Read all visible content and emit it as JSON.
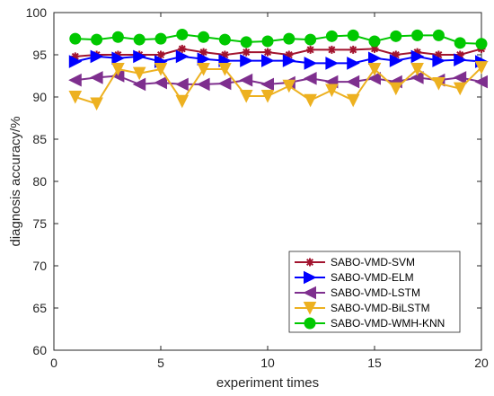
{
  "chart_data": {
    "type": "line",
    "title": "",
    "xlabel": "experiment times",
    "ylabel": "diagnosis accuracy/%",
    "xlim": [
      0,
      20
    ],
    "ylim": [
      60,
      100
    ],
    "xticks": [
      0,
      5,
      10,
      15,
      20
    ],
    "yticks": [
      60,
      65,
      70,
      75,
      80,
      85,
      90,
      95,
      100
    ],
    "grid": false,
    "legend_position": "bottom-right",
    "x": [
      1,
      2,
      3,
      4,
      5,
      6,
      7,
      8,
      9,
      10,
      11,
      12,
      13,
      14,
      15,
      16,
      17,
      18,
      19,
      20
    ],
    "series": [
      {
        "name": "SABO-VMD-SVM",
        "color": "#a2142f",
        "marker": "asterisk",
        "values": [
          94.8,
          95.0,
          95.0,
          95.0,
          95.0,
          95.7,
          95.3,
          95.0,
          95.3,
          95.3,
          95.0,
          95.6,
          95.6,
          95.6,
          95.7,
          95.0,
          95.3,
          95.0,
          95.0,
          95.7
        ]
      },
      {
        "name": "SABO-VMD-ELM",
        "color": "#0000ff",
        "marker": "triangle-right",
        "values": [
          94.2,
          94.8,
          94.6,
          94.8,
          94.2,
          94.8,
          94.5,
          94.3,
          94.3,
          94.3,
          94.3,
          94.0,
          94.0,
          94.0,
          94.6,
          94.3,
          94.8,
          94.3,
          94.4,
          94.2
        ]
      },
      {
        "name": "SABO-VMD-LSTM",
        "color": "#7e2f8e",
        "marker": "triangle-left",
        "values": [
          92.0,
          92.3,
          92.5,
          91.5,
          91.7,
          91.5,
          91.5,
          91.6,
          92.0,
          91.5,
          91.7,
          92.2,
          91.8,
          91.8,
          92.2,
          91.8,
          92.3,
          92.0,
          92.3,
          91.8
        ]
      },
      {
        "name": "SABO-VMD-BiLSTM",
        "color": "#edb120",
        "marker": "triangle-down",
        "values": [
          90.0,
          89.2,
          93.3,
          92.8,
          93.3,
          89.5,
          93.3,
          93.3,
          90.1,
          90.1,
          91.3,
          89.6,
          90.8,
          89.6,
          93.3,
          91.0,
          93.3,
          91.6,
          91.0,
          93.5
        ]
      },
      {
        "name": "SABO-VMD-WMH-KNN",
        "color": "#00c800",
        "marker": "circle",
        "values": [
          96.9,
          96.8,
          97.1,
          96.8,
          96.9,
          97.4,
          97.1,
          96.8,
          96.5,
          96.6,
          96.9,
          96.8,
          97.2,
          97.3,
          96.6,
          97.2,
          97.3,
          97.3,
          96.4,
          96.3
        ]
      }
    ]
  }
}
